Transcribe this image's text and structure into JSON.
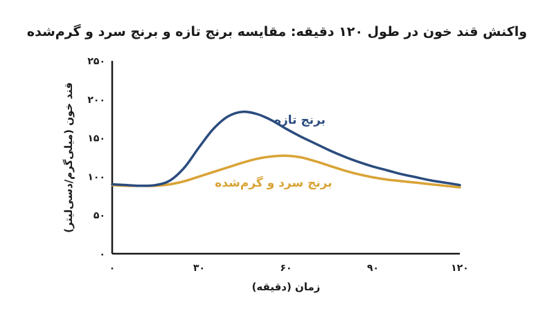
{
  "chart_data": {
    "type": "line",
    "title": "واکنش قند خون در طول ۱۲۰ دقیقه: مقایسه برنج تازه و برنج سرد و گرم‌شده",
    "xlabel": "زمان (دقیقه)",
    "ylabel": "قند خون (میلی‌گرم/دسی‌لیتر)",
    "xlim": [
      0,
      120
    ],
    "ylim": [
      0,
      250
    ],
    "x_ticks": [
      0,
      30,
      60,
      90,
      120
    ],
    "x_tick_labels": [
      "۰",
      "۳۰",
      "۶۰",
      "۹۰",
      "۱۲۰"
    ],
    "y_ticks": [
      0,
      50,
      100,
      150,
      200,
      250
    ],
    "y_tick_labels": [
      "۰",
      "۵۰",
      "۱۰۰",
      "۱۵۰",
      "۲۰۰",
      "۲۵۰"
    ],
    "grid": false,
    "series": [
      {
        "name": "برنج تازه",
        "color": "#2b4c7e",
        "x": [
          0,
          5,
          10,
          15,
          20,
          25,
          30,
          35,
          40,
          45,
          50,
          55,
          60,
          65,
          70,
          75,
          80,
          85,
          90,
          95,
          100,
          105,
          110,
          115,
          120
        ],
        "y": [
          90,
          89,
          88,
          89,
          95,
          112,
          138,
          162,
          178,
          184,
          181,
          173,
          162,
          152,
          143,
          134,
          126,
          119,
          113,
          108,
          103,
          99,
          95,
          92,
          89
        ]
      },
      {
        "name": "برنج سرد و گرم‌شده",
        "color": "#d9a336",
        "x": [
          0,
          5,
          10,
          15,
          20,
          25,
          30,
          35,
          40,
          45,
          50,
          55,
          60,
          65,
          70,
          75,
          80,
          85,
          90,
          95,
          100,
          105,
          110,
          115,
          120
        ],
        "y": [
          89,
          88,
          88,
          88,
          90,
          94,
          100,
          106,
          112,
          118,
          123,
          126,
          127,
          125,
          120,
          114,
          108,
          103,
          99,
          96,
          94,
          92,
          90,
          88,
          86
        ]
      }
    ]
  }
}
